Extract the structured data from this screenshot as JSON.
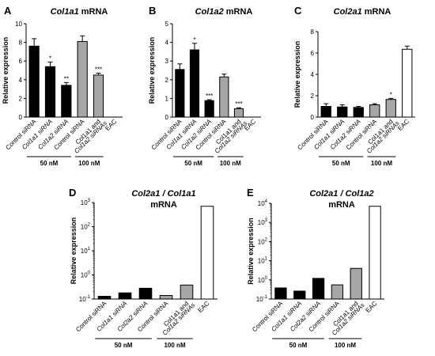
{
  "chart_data": [
    {
      "id": "A",
      "panel_label": "A",
      "title_italic": "Col1a1",
      "title_rest": " mRNA",
      "type": "bar",
      "scale": "linear",
      "ylim": [
        0,
        10
      ],
      "yticks": [
        "0",
        "2",
        "4",
        "6",
        "8",
        "10"
      ],
      "ylabel": "Relative expression",
      "categories": [
        {
          "label": "Control siRNA",
          "italic": false
        },
        {
          "label": "Col1a1 siRNA",
          "italic": true
        },
        {
          "label": "Col1a2 siRNA",
          "italic": true
        },
        {
          "label": "Control siRNA",
          "italic": false
        },
        {
          "label": "Col1a1 and",
          "italic": false,
          "label2": "Col1a2 siRNAs"
        },
        {
          "label": "EAC",
          "italic": false
        }
      ],
      "values": [
        7.6,
        5.4,
        3.4,
        8.1,
        4.5,
        null
      ],
      "errors": [
        0.8,
        0.5,
        0.3,
        0.6,
        0.2,
        null
      ],
      "fills": [
        "#000000",
        "#000000",
        "#000000",
        "#a6a6a6",
        "#a6a6a6",
        "#ffffff"
      ],
      "significance": [
        "",
        "*",
        "**",
        "",
        "***",
        ""
      ],
      "groups": [
        {
          "label": "50 nM",
          "from": 0,
          "to": 2
        },
        {
          "label": "100 nM",
          "from": 3,
          "to": 4
        }
      ]
    },
    {
      "id": "B",
      "panel_label": "B",
      "title_italic": "Col1a2",
      "title_rest": " mRNA",
      "type": "bar",
      "scale": "linear",
      "ylim": [
        0,
        5
      ],
      "yticks": [
        "0",
        "1",
        "2",
        "3",
        "4",
        "5"
      ],
      "ylabel": "Relative expression",
      "categories": [
        {
          "label": "Control siRNA",
          "italic": false
        },
        {
          "label": "Col1a1 siRNA",
          "italic": true
        },
        {
          "label": "Col1a2 siRNA",
          "italic": true
        },
        {
          "label": "Control siRNA",
          "italic": false
        },
        {
          "label": "Col1a1 and",
          "italic": false,
          "label2": "Col1a2 siRNAs"
        },
        {
          "label": "EAC",
          "italic": false
        }
      ],
      "values": [
        2.55,
        3.6,
        0.88,
        2.15,
        0.45,
        null
      ],
      "errors": [
        0.3,
        0.35,
        0.05,
        0.15,
        0.05,
        null
      ],
      "fills": [
        "#000000",
        "#000000",
        "#000000",
        "#a6a6a6",
        "#a6a6a6",
        "#ffffff"
      ],
      "significance": [
        "",
        "*",
        "***",
        "",
        "***",
        ""
      ],
      "groups": [
        {
          "label": "50 nM",
          "from": 0,
          "to": 2
        },
        {
          "label": "100 nM",
          "from": 3,
          "to": 4
        }
      ]
    },
    {
      "id": "C",
      "panel_label": "C",
      "title_italic": "Col2a1",
      "title_rest": " mRNA",
      "type": "bar",
      "scale": "linear",
      "ylim": [
        0,
        8
      ],
      "yticks": [
        "0",
        "2",
        "4",
        "6",
        "8"
      ],
      "ylabel": "Relative expression",
      "categories": [
        {
          "label": "Control siRNA",
          "italic": false
        },
        {
          "label": "Col1a1 siRNA",
          "italic": true
        },
        {
          "label": "Col1a2 siRNA",
          "italic": true
        },
        {
          "label": "Control siRNA",
          "italic": false
        },
        {
          "label": "Col1a1 and",
          "italic": false,
          "label2": "Col1a2 siRNAs"
        },
        {
          "label": "EAC",
          "italic": false
        }
      ],
      "values": [
        1.0,
        0.95,
        0.9,
        1.15,
        1.65,
        6.35
      ],
      "errors": [
        0.25,
        0.2,
        0.1,
        0.1,
        0.1,
        0.3
      ],
      "fills": [
        "#000000",
        "#000000",
        "#000000",
        "#a6a6a6",
        "#a6a6a6",
        "#ffffff"
      ],
      "significance": [
        "",
        "",
        "",
        "",
        "*",
        ""
      ],
      "groups": [
        {
          "label": "50 nM",
          "from": 0,
          "to": 2
        },
        {
          "label": "100 nM",
          "from": 3,
          "to": 4
        }
      ]
    },
    {
      "id": "D",
      "panel_label": "D",
      "title_italic": "Col2a1 / Col1a1",
      "title_rest": "",
      "title_line2": "mRNA",
      "type": "bar",
      "scale": "log",
      "ylim": [
        0.1,
        1000
      ],
      "yticks": [
        "10-1",
        "100",
        "101",
        "102",
        "103"
      ],
      "ylabel": "Relative expression",
      "categories": [
        {
          "label": "Control siRNA",
          "italic": false
        },
        {
          "label": "Col1a1 siRNA",
          "italic": true
        },
        {
          "label": "Col2a2 siRNA",
          "italic": true
        },
        {
          "label": "Control siRNA",
          "italic": false
        },
        {
          "label": "Col1a1 and",
          "italic": false,
          "label2": "Col1a2 siRNAs"
        },
        {
          "label": "EAC",
          "italic": false
        }
      ],
      "values": [
        0.13,
        0.18,
        0.28,
        0.14,
        0.38,
        700
      ],
      "errors": [
        null,
        null,
        null,
        null,
        null,
        null
      ],
      "fills": [
        "#000000",
        "#000000",
        "#000000",
        "#a6a6a6",
        "#a6a6a6",
        "#ffffff"
      ],
      "significance": [
        "",
        "",
        "",
        "",
        "",
        ""
      ],
      "groups": [
        {
          "label": "50 nM",
          "from": 0,
          "to": 2
        },
        {
          "label": "100 nM",
          "from": 3,
          "to": 4
        }
      ]
    },
    {
      "id": "E",
      "panel_label": "E",
      "title_italic": "Col2a1 / Col1a2",
      "title_rest": "",
      "title_line2": "mRNA",
      "type": "bar",
      "scale": "log",
      "ylim": [
        0.1,
        10000
      ],
      "yticks": [
        "10-1",
        "100",
        "101",
        "102",
        "103",
        "104"
      ],
      "ylabel": "Relative expression",
      "categories": [
        {
          "label": "Control siRNA",
          "italic": false
        },
        {
          "label": "Col1a1 siRNA",
          "italic": true
        },
        {
          "label": "Col2a2 siRNA",
          "italic": true
        },
        {
          "label": "Control siRNA",
          "italic": false
        },
        {
          "label": "Col1a1 and",
          "italic": false,
          "label2": "Col1a2 siRNAs"
        },
        {
          "label": "EAC",
          "italic": false
        }
      ],
      "values": [
        0.38,
        0.26,
        1.2,
        0.55,
        4.0,
        7000
      ],
      "errors": [
        null,
        null,
        null,
        null,
        null,
        null
      ],
      "fills": [
        "#000000",
        "#000000",
        "#000000",
        "#a6a6a6",
        "#a6a6a6",
        "#ffffff"
      ],
      "significance": [
        "",
        "",
        "",
        "",
        "",
        ""
      ],
      "groups": [
        {
          "label": "50 nM",
          "from": 0,
          "to": 2
        },
        {
          "label": "100 nM",
          "from": 3,
          "to": 4
        }
      ]
    }
  ]
}
